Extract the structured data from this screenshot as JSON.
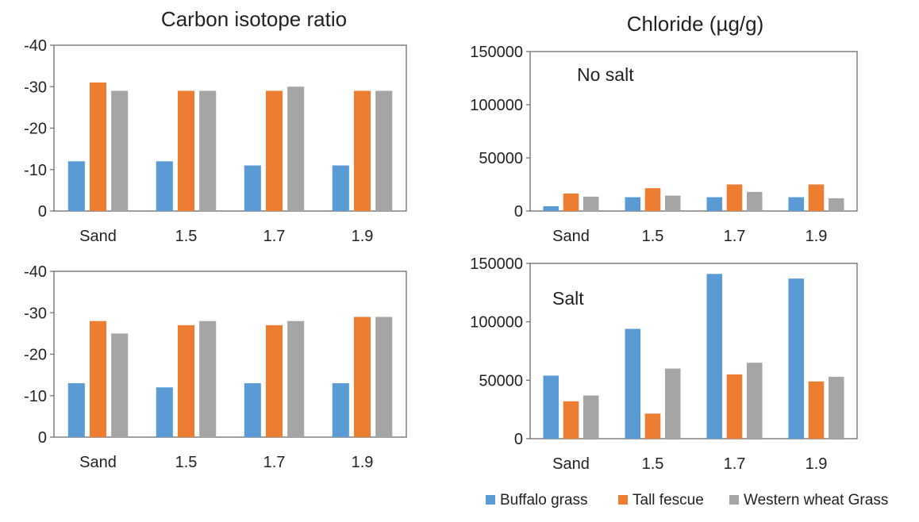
{
  "colors": {
    "buffalo": "#5b9bd5",
    "fescue": "#ed7d31",
    "wheat": "#a5a5a5",
    "axis": "#6b6b6b"
  },
  "legend": {
    "position": "bottom-right",
    "items": [
      "Buffalo grass",
      "Tall fescue",
      "Western wheat Grass"
    ]
  },
  "chart_data": [
    {
      "id": "carbon-no-salt",
      "type": "bar",
      "title": "Carbon isotope ratio",
      "annotation": "",
      "categories": [
        "Sand",
        "1.5",
        "1.7",
        "1.9"
      ],
      "ylim": [
        0,
        -40
      ],
      "yticks": [
        "-40",
        "-30",
        "-20",
        "-10",
        "0"
      ],
      "tick_values": [
        -40,
        -30,
        -20,
        -10,
        0
      ],
      "grid": false,
      "series": [
        {
          "name": "Buffalo grass",
          "values": [
            -12,
            -12,
            -11,
            -11
          ]
        },
        {
          "name": "Tall fescue",
          "values": [
            -31,
            -29,
            -29,
            -29
          ]
        },
        {
          "name": "Western wheat Grass",
          "values": [
            -29,
            -29,
            -30,
            -29
          ]
        }
      ]
    },
    {
      "id": "chloride-no-salt",
      "type": "bar",
      "title": "Chloride (µg/g)",
      "annotation": "No salt",
      "categories": [
        "Sand",
        "1.5",
        "1.7",
        "1.9"
      ],
      "ylim": [
        0,
        150000
      ],
      "yticks": [
        "150000",
        "100000",
        "50000",
        "0"
      ],
      "tick_values": [
        150000,
        100000,
        50000,
        0
      ],
      "grid": false,
      "series": [
        {
          "name": "Buffalo grass",
          "values": [
            4500,
            13000,
            13000,
            13000
          ]
        },
        {
          "name": "Tall fescue",
          "values": [
            16500,
            21500,
            25000,
            25000
          ]
        },
        {
          "name": "Western wheat Grass",
          "values": [
            13500,
            14500,
            18000,
            12000
          ]
        }
      ]
    },
    {
      "id": "carbon-salt",
      "type": "bar",
      "title": "",
      "annotation": "",
      "categories": [
        "Sand",
        "1.5",
        "1.7",
        "1.9"
      ],
      "ylim": [
        0,
        -40
      ],
      "yticks": [
        "-40",
        "-30",
        "-20",
        "-10",
        "0"
      ],
      "tick_values": [
        -40,
        -30,
        -20,
        -10,
        0
      ],
      "grid": false,
      "series": [
        {
          "name": "Buffalo grass",
          "values": [
            -13,
            -12,
            -13,
            -13
          ]
        },
        {
          "name": "Tall fescue",
          "values": [
            -28,
            -27,
            -27,
            -29
          ]
        },
        {
          "name": "Western wheat Grass",
          "values": [
            -25,
            -28,
            -28,
            -29
          ]
        }
      ]
    },
    {
      "id": "chloride-salt",
      "type": "bar",
      "title": "",
      "annotation": "Salt",
      "categories": [
        "Sand",
        "1.5",
        "1.7",
        "1.9"
      ],
      "ylim": [
        0,
        150000
      ],
      "yticks": [
        "150000",
        "100000",
        "50000",
        "0"
      ],
      "tick_values": [
        150000,
        100000,
        50000,
        0
      ],
      "grid": false,
      "series": [
        {
          "name": "Buffalo grass",
          "values": [
            54000,
            94000,
            141000,
            137000
          ]
        },
        {
          "name": "Tall fescue",
          "values": [
            32000,
            21500,
            55000,
            49000
          ]
        },
        {
          "name": "Western wheat Grass",
          "values": [
            37000,
            60000,
            65000,
            53000
          ]
        }
      ]
    }
  ]
}
